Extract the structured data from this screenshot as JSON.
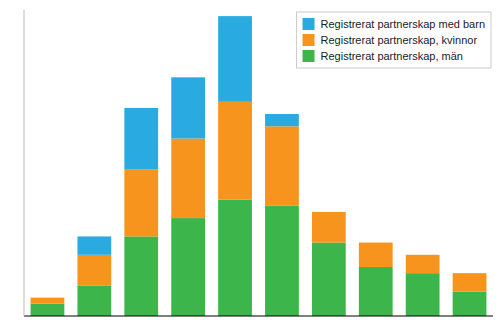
{
  "chart_data": {
    "type": "bar",
    "stacked": true,
    "categories": [
      null,
      null,
      null,
      null,
      null,
      null,
      null,
      null,
      null,
      null
    ],
    "series": [
      {
        "name": "Registrerat partnerskap, män",
        "color": "#3cb54a",
        "values": [
          2,
          5,
          13,
          16,
          19,
          18,
          12,
          8,
          7,
          4
        ]
      },
      {
        "name": "Registrerat partnerskap, kvinnor",
        "color": "#f7941d",
        "values": [
          1,
          5,
          11,
          13,
          16,
          13,
          5,
          4,
          3,
          3
        ]
      },
      {
        "name": "Registrerat partnerskap med barn",
        "color": "#29abe2",
        "values": [
          0,
          3,
          10,
          10,
          14,
          2,
          0,
          0,
          0,
          0
        ]
      }
    ],
    "ylim": [
      0,
      50
    ],
    "tick_labels": false,
    "grid": false,
    "legend": "upper right"
  }
}
